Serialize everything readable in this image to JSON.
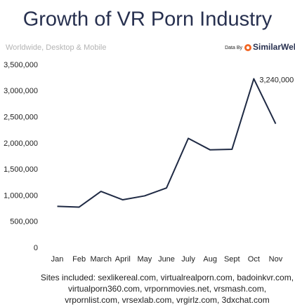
{
  "chart_data": {
    "type": "line",
    "title": "Growth of VR Porn Industry",
    "subtitle": "Worldwide, Desktop & Mobile",
    "source": {
      "prefix": "Data By",
      "name": "SimilarWeb"
    },
    "categories": [
      "Jan",
      "Feb",
      "March",
      "April",
      "May",
      "June",
      "July",
      "Aug",
      "Sept",
      "Oct",
      "Nov"
    ],
    "values": [
      800000,
      785000,
      1085000,
      925000,
      1000000,
      1150000,
      2100000,
      1880000,
      1890000,
      3240000,
      2380000
    ],
    "value_labels": [
      null,
      null,
      null,
      null,
      null,
      null,
      null,
      null,
      null,
      "3,240,000",
      null
    ],
    "color": "#1f2a44",
    "ylim": [
      0,
      3500000
    ],
    "yticks": [
      0,
      {
        "value": 500000,
        "label": "500,000"
      },
      {
        "value": 1000000,
        "label": "1,000,000"
      },
      {
        "value": 1500000,
        "label": "1,500,000"
      },
      {
        "value": 2000000,
        "label": "2,000,000"
      },
      {
        "value": 2500000,
        "label": "2,500,000"
      },
      {
        "value": 3000000,
        "label": "3,000,000"
      },
      {
        "value": 3500000,
        "label": "3,500,000"
      }
    ],
    "grid": false,
    "footnote": [
      "Sites included: sexlikereal.com, virtualrealporn.com, badoinkvr.com,",
      "virtualporn360.com, vrpornmovies.net, vrsmash.com,",
      "vrpornlist.com, vrsexlab.com, vrgirlz.com, 3dxchat.com"
    ]
  }
}
